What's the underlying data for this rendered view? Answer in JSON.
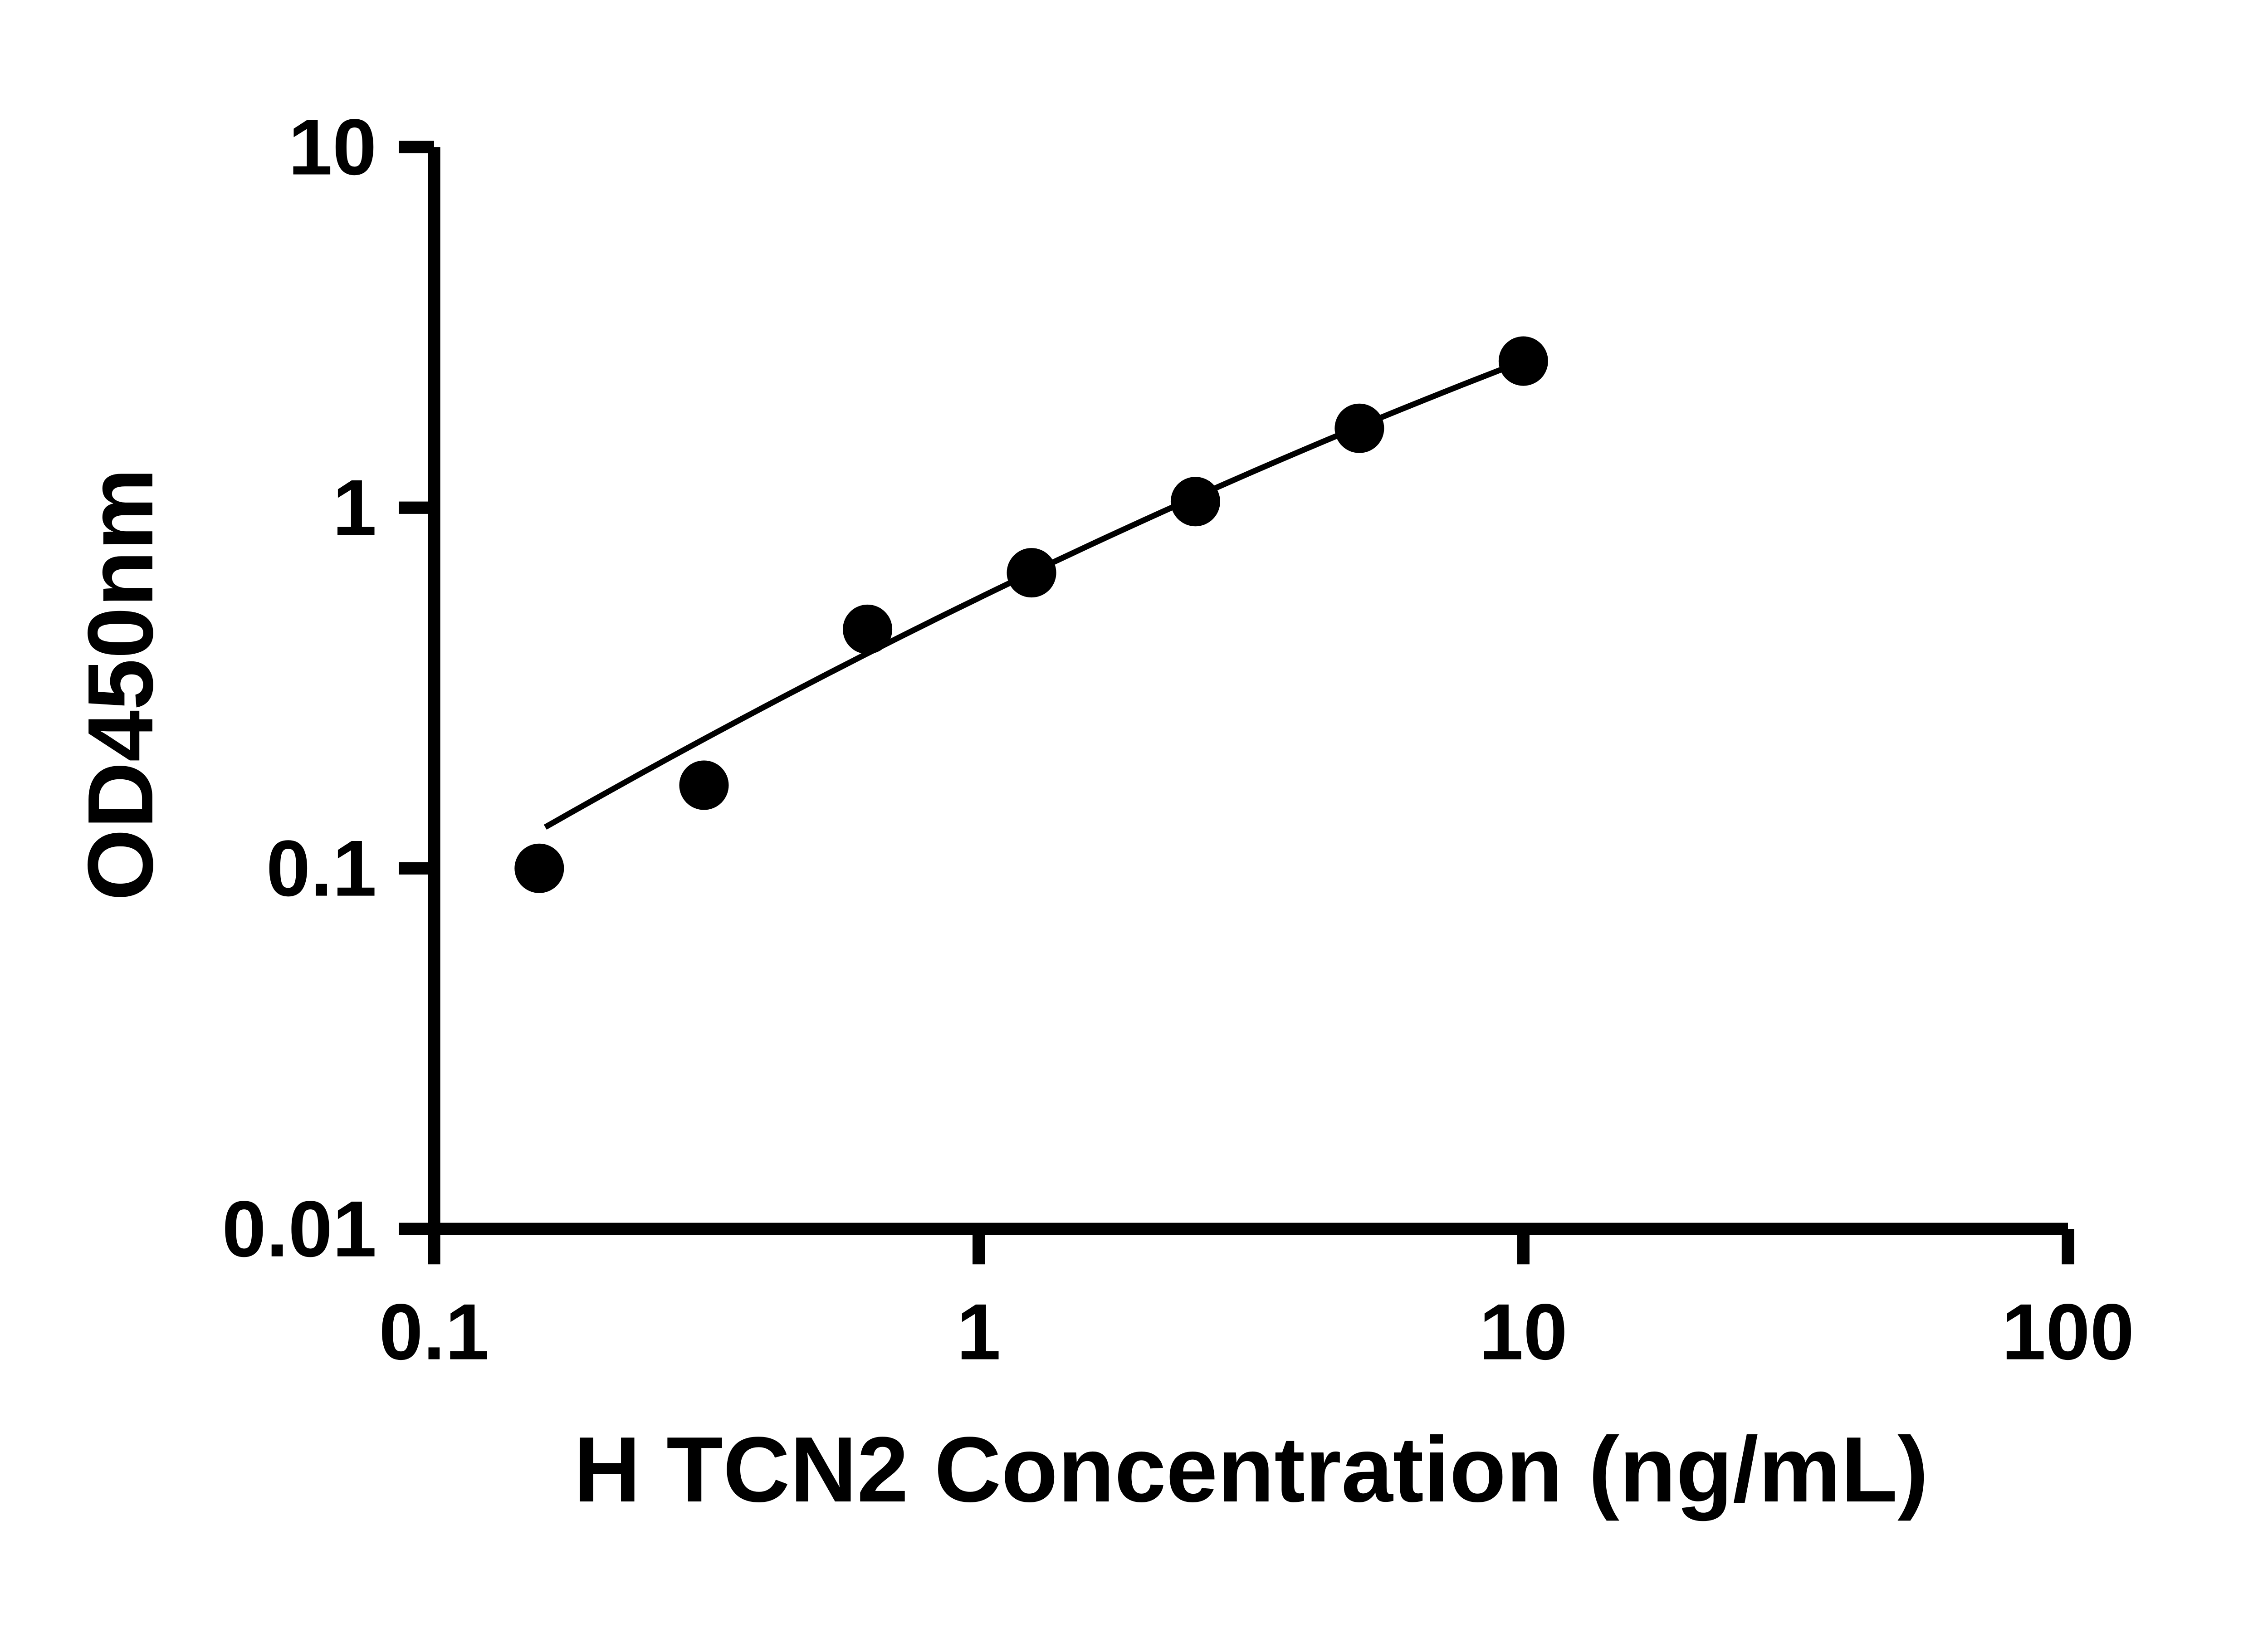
{
  "chart_data": {
    "type": "scatter",
    "title": "",
    "xlabel": "H TCN2 Concentration (ng/mL)",
    "ylabel": "OD450nm",
    "x_scale": "log",
    "y_scale": "log",
    "xlim": [
      0.1,
      100
    ],
    "ylim": [
      0.01,
      10
    ],
    "grid": false,
    "legend": null,
    "x_ticks": [
      {
        "value": 0.1,
        "label": "0.1"
      },
      {
        "value": 1,
        "label": "1"
      },
      {
        "value": 10,
        "label": "10"
      },
      {
        "value": 100,
        "label": "100"
      }
    ],
    "y_ticks": [
      {
        "value": 0.01,
        "label": "0.01"
      },
      {
        "value": 0.1,
        "label": "0.1"
      },
      {
        "value": 1,
        "label": "1"
      },
      {
        "value": 10,
        "label": "10"
      }
    ],
    "points": [
      {
        "x": 0.156,
        "y": 0.1
      },
      {
        "x": 0.313,
        "y": 0.17
      },
      {
        "x": 0.625,
        "y": 0.46
      },
      {
        "x": 1.25,
        "y": 0.66
      },
      {
        "x": 2.5,
        "y": 1.04
      },
      {
        "x": 5,
        "y": 1.66
      },
      {
        "x": 10,
        "y": 2.55
      }
    ],
    "trendline": {
      "model": "log10(y) = a + b*log10(x) + c*log10(x)^2",
      "a": -0.2505,
      "b": 0.7357,
      "c": -0.0787,
      "x_start": 0.16,
      "x_end": 10
    },
    "colors": {
      "marker": "#000000",
      "line": "#000000",
      "axis": "#000000",
      "background": "#ffffff"
    }
  }
}
